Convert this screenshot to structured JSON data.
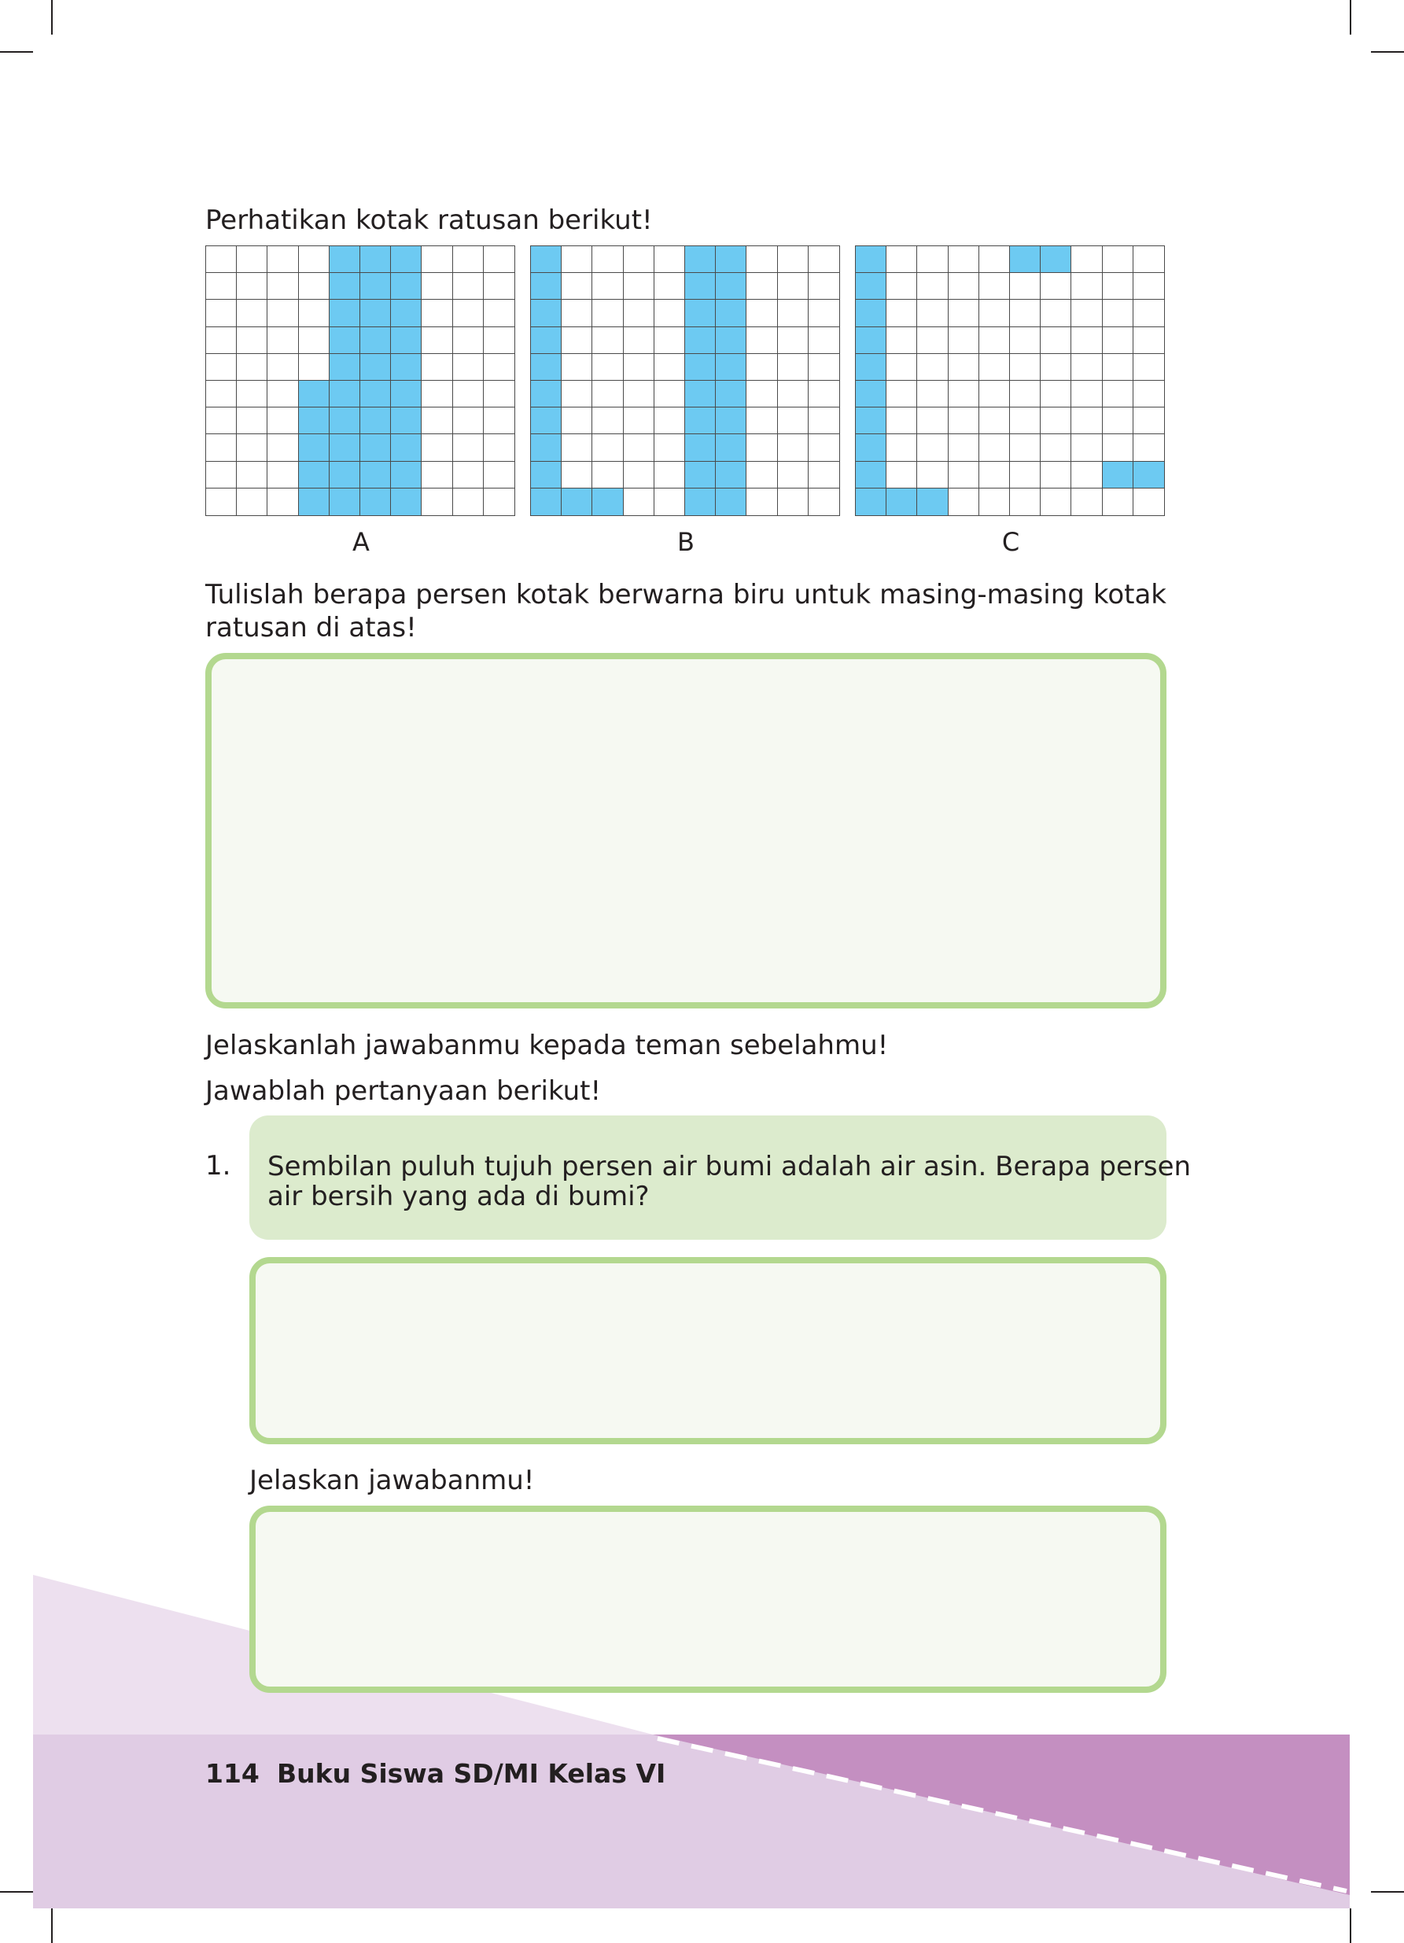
{
  "instructions": {
    "observe": "Perhatikan kotak ratusan berikut!",
    "write_percent": "Tulislah berapa persen kotak berwarna biru untuk masing-masing kotak ratusan di atas!",
    "explain_to_friend": "Jelaskanlah jawabanmu kepada teman sebelahmu!",
    "answer_questions": "Jawablah pertanyaan berikut!"
  },
  "grids": [
    {
      "label": "A",
      "filled": [
        [
          0,
          4
        ],
        [
          0,
          5
        ],
        [
          0,
          6
        ],
        [
          1,
          4
        ],
        [
          1,
          5
        ],
        [
          1,
          6
        ],
        [
          2,
          4
        ],
        [
          2,
          5
        ],
        [
          2,
          6
        ],
        [
          3,
          4
        ],
        [
          3,
          5
        ],
        [
          3,
          6
        ],
        [
          4,
          4
        ],
        [
          4,
          5
        ],
        [
          4,
          6
        ],
        [
          5,
          3
        ],
        [
          5,
          4
        ],
        [
          5,
          5
        ],
        [
          5,
          6
        ],
        [
          6,
          3
        ],
        [
          6,
          4
        ],
        [
          6,
          5
        ],
        [
          6,
          6
        ],
        [
          7,
          3
        ],
        [
          7,
          4
        ],
        [
          7,
          5
        ],
        [
          7,
          6
        ],
        [
          8,
          3
        ],
        [
          8,
          4
        ],
        [
          8,
          5
        ],
        [
          8,
          6
        ],
        [
          9,
          3
        ],
        [
          9,
          4
        ],
        [
          9,
          5
        ],
        [
          9,
          6
        ]
      ]
    },
    {
      "label": "B",
      "filled": [
        [
          0,
          0
        ],
        [
          1,
          0
        ],
        [
          2,
          0
        ],
        [
          3,
          0
        ],
        [
          4,
          0
        ],
        [
          5,
          0
        ],
        [
          6,
          0
        ],
        [
          7,
          0
        ],
        [
          8,
          0
        ],
        [
          9,
          0
        ],
        [
          9,
          1
        ],
        [
          9,
          2
        ],
        [
          0,
          5
        ],
        [
          0,
          6
        ],
        [
          1,
          5
        ],
        [
          1,
          6
        ],
        [
          2,
          5
        ],
        [
          2,
          6
        ],
        [
          3,
          5
        ],
        [
          3,
          6
        ],
        [
          4,
          5
        ],
        [
          4,
          6
        ],
        [
          5,
          5
        ],
        [
          5,
          6
        ],
        [
          6,
          5
        ],
        [
          6,
          6
        ],
        [
          7,
          5
        ],
        [
          7,
          6
        ],
        [
          8,
          5
        ],
        [
          8,
          6
        ],
        [
          9,
          5
        ],
        [
          9,
          6
        ]
      ]
    },
    {
      "label": "C",
      "filled": [
        [
          0,
          0
        ],
        [
          1,
          0
        ],
        [
          2,
          0
        ],
        [
          3,
          0
        ],
        [
          4,
          0
        ],
        [
          5,
          0
        ],
        [
          6,
          0
        ],
        [
          7,
          0
        ],
        [
          8,
          0
        ],
        [
          9,
          0
        ],
        [
          9,
          1
        ],
        [
          9,
          2
        ],
        [
          0,
          5
        ],
        [
          0,
          6
        ],
        [
          8,
          8
        ],
        [
          8,
          9
        ]
      ]
    }
  ],
  "question": {
    "number": "1.",
    "line1": "Sembilan puluh tujuh persen air bumi adalah air asin. Berapa persen",
    "line2": "air bersih yang ada di bumi?",
    "explain_label": "Jelaskan jawabanmu!"
  },
  "footer": {
    "page_number": "114",
    "book_title": "Buku Siswa SD/MI Kelas VI"
  },
  "colors": {
    "grid_fill": "#6dcaf2",
    "answer_border": "#b3d88f",
    "question_bg": "#dcebcd",
    "footer_light": "#e0cce4",
    "footer_dark": "#c48fc1"
  }
}
